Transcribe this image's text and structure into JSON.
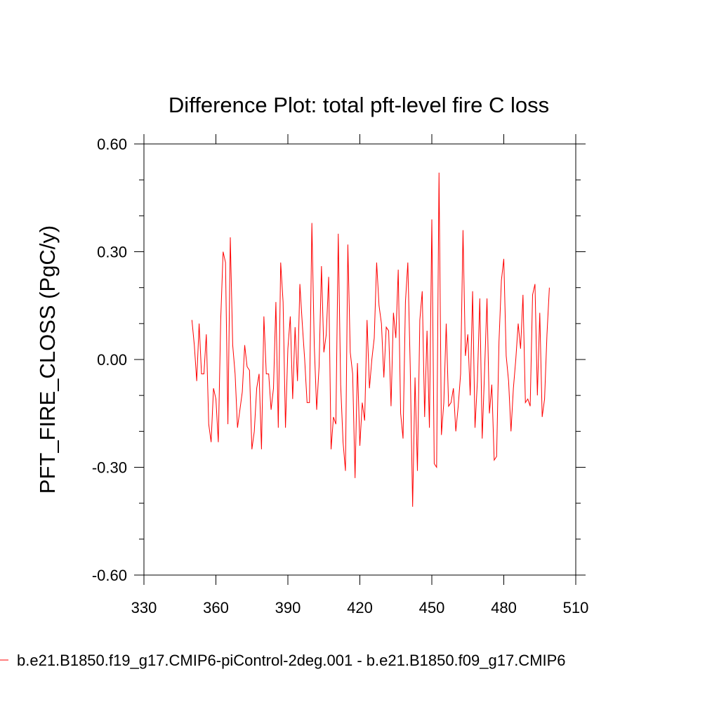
{
  "chart_data": {
    "type": "line",
    "title": "Difference Plot: total pft-level fire C loss",
    "xlabel": "",
    "ylabel": "PFT_FIRE_CLOSS  (PgC/y)",
    "xlim": [
      330,
      510
    ],
    "ylim": [
      -0.6,
      0.6
    ],
    "xticks": [
      330,
      360,
      390,
      420,
      450,
      480,
      510
    ],
    "xtick_labels": [
      "330",
      "360",
      "390",
      "420",
      "450",
      "480",
      "510"
    ],
    "yticks": [
      -0.6,
      -0.3,
      0.0,
      0.3,
      0.6
    ],
    "ytick_labels": [
      "-0.60",
      "-0.30",
      "0.00",
      "0.30",
      "0.60"
    ],
    "x_start": 350,
    "x_step": 1,
    "series": [
      {
        "name": "b.e21.B1850.f19_g17.CMIP6-piControl-2deg.001 - b.e21.B1850.f09_g17.CMIP6",
        "color": "#ff0000",
        "values": [
          0.11,
          0.04,
          -0.06,
          0.1,
          -0.04,
          -0.04,
          0.07,
          -0.18,
          -0.23,
          -0.08,
          -0.11,
          -0.23,
          0.11,
          0.3,
          0.27,
          -0.18,
          0.34,
          0.04,
          -0.04,
          -0.19,
          -0.14,
          -0.09,
          0.04,
          -0.02,
          -0.03,
          -0.25,
          -0.2,
          -0.08,
          -0.04,
          -0.25,
          0.12,
          -0.04,
          -0.04,
          -0.14,
          -0.08,
          0.16,
          -0.19,
          0.27,
          0.16,
          -0.19,
          0.03,
          0.12,
          -0.11,
          0.09,
          -0.06,
          0.21,
          0.1,
          0.0,
          -0.12,
          -0.12,
          0.38,
          0.04,
          -0.14,
          -0.02,
          0.26,
          0.02,
          0.07,
          0.23,
          -0.25,
          -0.16,
          -0.18,
          0.35,
          -0.07,
          -0.23,
          -0.31,
          0.32,
          0.02,
          -0.04,
          -0.33,
          -0.01,
          -0.24,
          -0.12,
          -0.17,
          0.11,
          -0.08,
          0.0,
          0.06,
          0.27,
          0.15,
          0.1,
          -0.05,
          0.09,
          0.08,
          -0.13,
          0.13,
          0.06,
          0.25,
          -0.15,
          -0.22,
          0.16,
          0.27,
          -0.02,
          -0.41,
          -0.05,
          -0.31,
          0.11,
          0.19,
          -0.16,
          0.08,
          -0.19,
          0.39,
          -0.29,
          -0.3,
          0.52,
          -0.21,
          -0.12,
          0.1,
          -0.13,
          -0.12,
          -0.08,
          -0.2,
          -0.13,
          -0.04,
          0.36,
          0.01,
          0.07,
          -0.1,
          0.19,
          -0.19,
          -0.06,
          0.17,
          -0.22,
          -0.03,
          0.17,
          -0.15,
          -0.07,
          -0.28,
          -0.27,
          0.05,
          0.22,
          0.28,
          0.01,
          -0.06,
          -0.2,
          -0.08,
          0.0,
          0.1,
          0.03,
          0.18,
          -0.12,
          -0.11,
          -0.13,
          0.18,
          0.21,
          -0.1,
          0.13,
          -0.16,
          -0.11,
          0.07,
          0.2
        ]
      }
    ],
    "legend_position": "bottom"
  }
}
